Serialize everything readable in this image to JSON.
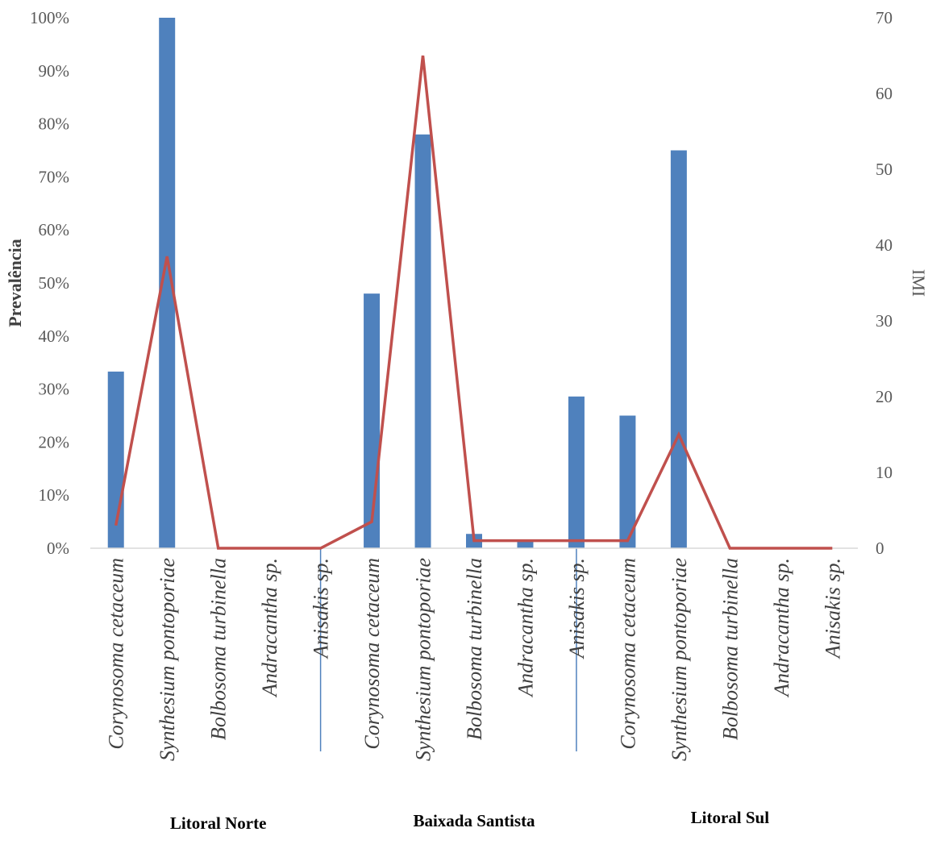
{
  "chart_data": {
    "type": "bar",
    "categories": [
      "Corynosoma cetaceum",
      "Synthesium pontoporiae",
      "Bolbosoma turbinella",
      "Andracantha sp.",
      "Anisakis sp.",
      "Corynosoma cetaceum",
      "Synthesium pontoporiae",
      "Bolbosoma turbinella",
      "Andracantha sp.",
      "Anisakis sp.",
      "Corynosoma cetaceum",
      "Synthesium pontoporiae",
      "Bolbosoma turbinella",
      "Andracantha sp.",
      "Anisakis sp."
    ],
    "groups": [
      {
        "label": "Litoral Norte",
        "start": 0,
        "end": 4
      },
      {
        "label": "Baixada Santista",
        "start": 5,
        "end": 9
      },
      {
        "label": "Litoral Sul",
        "start": 10,
        "end": 14
      }
    ],
    "series": [
      {
        "type": "bar",
        "axis": "left",
        "values": [
          33.3,
          100,
          0,
          0,
          0,
          48,
          78,
          2.7,
          1.4,
          28.6,
          25,
          75,
          0,
          0,
          0
        ]
      },
      {
        "type": "line",
        "axis": "right",
        "values": [
          3,
          38.5,
          0,
          0,
          0,
          3.5,
          65,
          1,
          1,
          1,
          1,
          15,
          0,
          0,
          0
        ]
      }
    ],
    "ylabel": "Prevalência",
    "y2label": "IMI",
    "ylim": [
      0,
      100
    ],
    "y2lim": [
      0,
      70
    ],
    "yticks": [
      "0%",
      "10%",
      "20%",
      "30%",
      "40%",
      "50%",
      "60%",
      "70%",
      "80%",
      "90%",
      "100%"
    ],
    "y2ticks": [
      "0",
      "10",
      "20",
      "30",
      "40",
      "50",
      "60",
      "70"
    ],
    "colors": {
      "bar": "#4f81bd",
      "line": "#c0504d",
      "divider": "#4f81bd",
      "axis": "#d9d9d9"
    },
    "grid": false,
    "legend": "none"
  }
}
